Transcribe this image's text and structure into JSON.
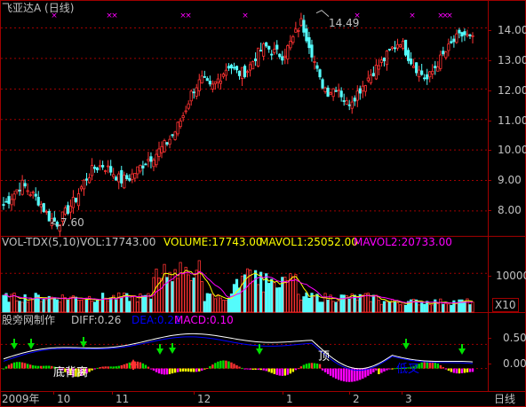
{
  "main_panel": {
    "title": "飞亚达A (日线)",
    "high_label": "14.49",
    "low_label": "7.60",
    "y_ticks": [
      "14.00",
      "13.00",
      "12.00",
      "11.00",
      "10.00",
      "9.00",
      "8.00"
    ]
  },
  "vol_panel": {
    "name": "VOL-TDX(5,10)",
    "vol": "VOL:17743.00",
    "volume": "VOLUME:17743.00",
    "mavol1": "MAVOL1:25052.00",
    "mavol2": "MAVOL2:20733.00",
    "y_tick": "10000",
    "unit": "X10"
  },
  "macd_panel": {
    "name": "股旁网制作",
    "diff": "DIFF:0.26",
    "dea": "DEA:0.22",
    "macd": "MACD:0.10",
    "y_ticks": [
      "0.50",
      "0.00"
    ],
    "annotation_bottom_divergence": "底背离",
    "annotation_top": "顶",
    "annotation_low_cross": "低叉"
  },
  "x_axis": {
    "dates": [
      "2009年",
      "10",
      "11",
      "12",
      "1",
      "2",
      "3"
    ],
    "period": "日线"
  },
  "colors": {
    "up": "#ff3232",
    "down": "#54fcfc",
    "grid": "#a00000",
    "vol": "#ffff00",
    "mavol2": "#ff00ff",
    "macd_green": "#00e000",
    "macd_magenta": "#ff00ff",
    "macd_yellow": "#ffff00"
  },
  "chart_data": {
    "type": "candlestick",
    "title": "飞亚达A (日线)",
    "price_ylim": [
      7.3,
      14.8
    ],
    "price_high": 14.49,
    "price_low": 7.6,
    "close_trend": [
      8.2,
      8.5,
      8.9,
      8.6,
      8.3,
      7.8,
      7.6,
      8.0,
      8.4,
      9.0,
      9.4,
      9.5,
      9.3,
      9.0,
      9.1,
      9.4,
      9.7,
      9.9,
      10.2,
      10.6,
      11.2,
      12.0,
      12.3,
      12.0,
      12.4,
      12.8,
      12.5,
      12.6,
      13.1,
      13.4,
      13.2,
      13.1,
      13.6,
      14.2,
      13.4,
      12.3,
      11.9,
      12.1,
      11.5,
      11.8,
      12.2,
      12.6,
      12.9,
      13.3,
      13.6,
      13.0,
      12.6,
      12.3,
      12.8,
      13.2,
      13.6,
      13.8,
      13.6
    ],
    "vol_ylim": [
      0,
      16000
    ],
    "vol_last": 17743,
    "mavol1_last": 25052,
    "mavol2_last": 20733,
    "macd_ylim": [
      -0.45,
      0.95
    ],
    "diff_last": 0.26,
    "dea_last": 0.22,
    "macd_last": 0.1
  }
}
